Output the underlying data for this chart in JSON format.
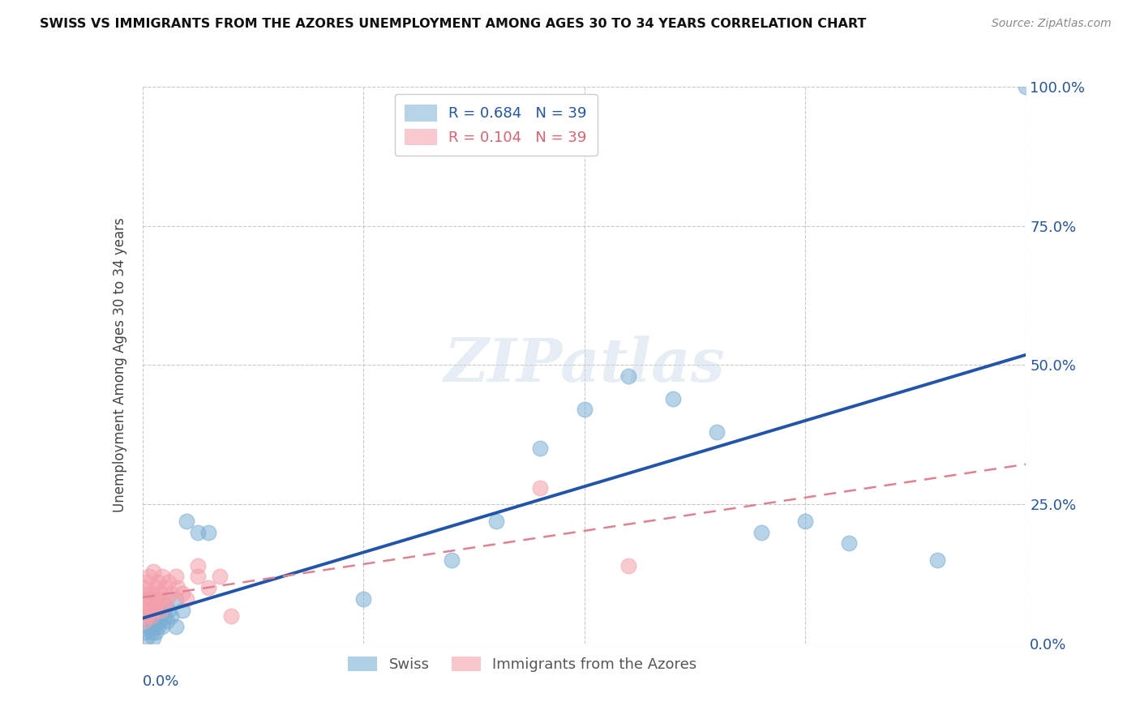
{
  "title": "SWISS VS IMMIGRANTS FROM THE AZORES UNEMPLOYMENT AMONG AGES 30 TO 34 YEARS CORRELATION CHART",
  "source": "Source: ZipAtlas.com",
  "ylabel": "Unemployment Among Ages 30 to 34 years",
  "legend_swiss_text": "R = 0.684   N = 39",
  "legend_azores_text": "R = 0.104   N = 39",
  "legend_label_swiss": "Swiss",
  "legend_label_azores": "Immigrants from the Azores",
  "swiss_color": "#7BAFD4",
  "azores_color": "#F4A0AA",
  "swiss_line_color": "#2255AA",
  "azores_line_color": "#E06070",
  "azores_line_dashed_color": "#E08090",
  "background_color": "#FFFFFF",
  "watermark": "ZIPatlas",
  "xlim": [
    0.0,
    0.4
  ],
  "ylim": [
    0.0,
    1.0
  ],
  "swiss_scatter_x": [
    0.001,
    0.002,
    0.003,
    0.003,
    0.004,
    0.004,
    0.005,
    0.005,
    0.006,
    0.006,
    0.007,
    0.007,
    0.008,
    0.008,
    0.009,
    0.01,
    0.01,
    0.011,
    0.012,
    0.013,
    0.015,
    0.015,
    0.018,
    0.02,
    0.025,
    0.03,
    0.1,
    0.14,
    0.16,
    0.18,
    0.2,
    0.22,
    0.24,
    0.26,
    0.28,
    0.3,
    0.32,
    0.36,
    0.4
  ],
  "swiss_scatter_y": [
    0.02,
    0.01,
    0.03,
    0.05,
    0.02,
    0.04,
    0.01,
    0.03,
    0.02,
    0.04,
    0.03,
    0.05,
    0.04,
    0.06,
    0.03,
    0.05,
    0.07,
    0.04,
    0.06,
    0.05,
    0.08,
    0.03,
    0.06,
    0.22,
    0.2,
    0.2,
    0.08,
    0.15,
    0.22,
    0.35,
    0.42,
    0.48,
    0.44,
    0.38,
    0.2,
    0.22,
    0.18,
    0.15,
    1.0
  ],
  "azores_scatter_x": [
    0.001,
    0.001,
    0.001,
    0.001,
    0.002,
    0.002,
    0.002,
    0.002,
    0.003,
    0.003,
    0.003,
    0.004,
    0.004,
    0.005,
    0.005,
    0.005,
    0.006,
    0.006,
    0.007,
    0.007,
    0.008,
    0.008,
    0.009,
    0.01,
    0.01,
    0.011,
    0.012,
    0.013,
    0.015,
    0.016,
    0.018,
    0.02,
    0.025,
    0.025,
    0.03,
    0.035,
    0.04,
    0.18,
    0.22
  ],
  "azores_scatter_y": [
    0.04,
    0.06,
    0.08,
    0.1,
    0.05,
    0.07,
    0.09,
    0.11,
    0.06,
    0.08,
    0.12,
    0.05,
    0.09,
    0.06,
    0.08,
    0.13,
    0.07,
    0.1,
    0.08,
    0.11,
    0.06,
    0.09,
    0.12,
    0.07,
    0.1,
    0.08,
    0.11,
    0.09,
    0.12,
    0.1,
    0.09,
    0.08,
    0.12,
    0.14,
    0.1,
    0.12,
    0.05,
    0.28,
    0.14
  ]
}
